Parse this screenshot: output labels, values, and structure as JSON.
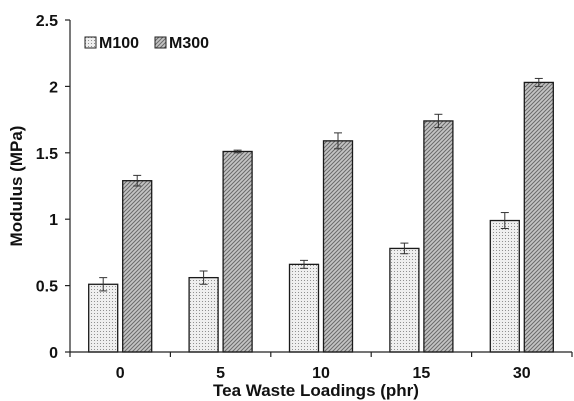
{
  "chart_data": {
    "type": "bar",
    "title": "",
    "xlabel": "Tea Waste Loadings (phr)",
    "ylabel": "Modulus (MPa)",
    "categories": [
      "0",
      "5",
      "10",
      "15",
      "30"
    ],
    "series": [
      {
        "name": "M100",
        "values": [
          0.51,
          0.56,
          0.66,
          0.78,
          0.99
        ],
        "errors": [
          0.05,
          0.05,
          0.03,
          0.04,
          0.06
        ],
        "pattern": "dots",
        "color": "#ececec"
      },
      {
        "name": "M300",
        "values": [
          1.29,
          1.51,
          1.59,
          1.74,
          2.03
        ],
        "errors": [
          0.04,
          0.01,
          0.06,
          0.05,
          0.03
        ],
        "pattern": "hatch",
        "color": "#bdbdbd"
      }
    ],
    "ylim": [
      0,
      2.5
    ],
    "yticks": [
      "0",
      "0.5",
      "1",
      "1.5",
      "2",
      "2.5"
    ],
    "grid": false,
    "legend_position": "top-left"
  }
}
